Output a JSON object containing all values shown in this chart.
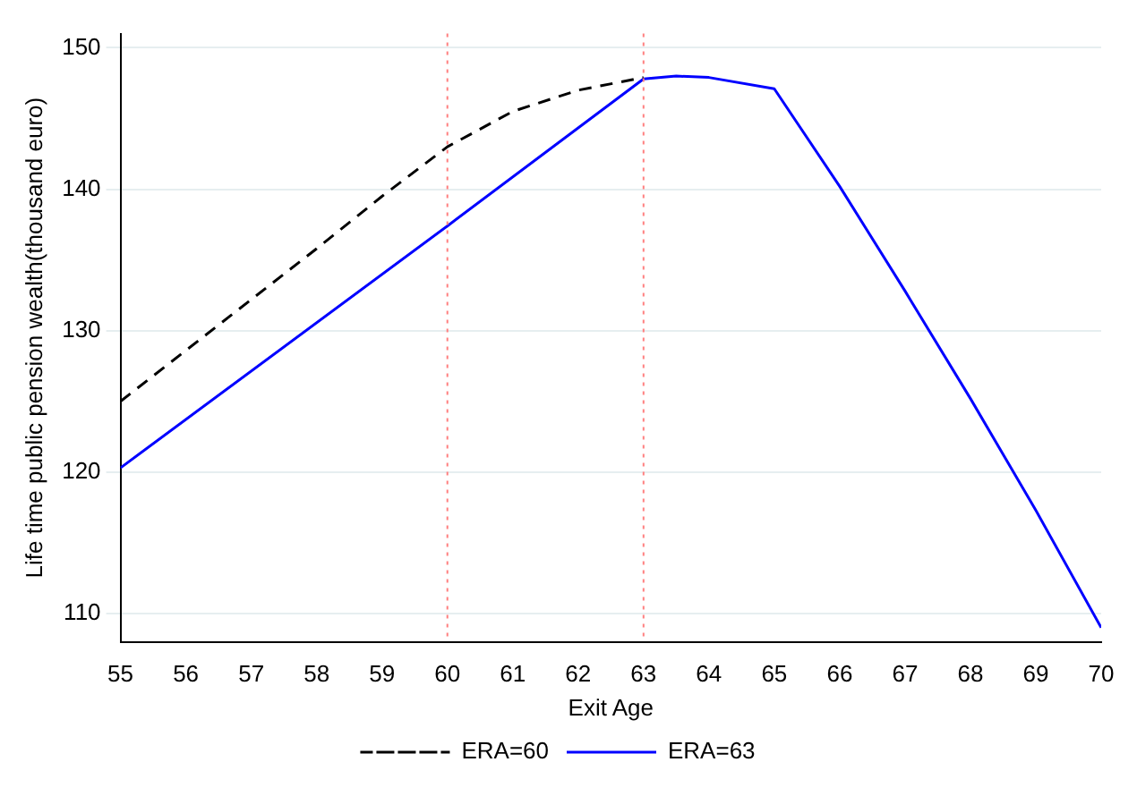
{
  "chart_data": {
    "type": "line",
    "xlabel": "Exit Age",
    "ylabel": "Life time public pension wealth(thousand euro)",
    "series": [
      {
        "name": "ERA=60",
        "color": "#000000",
        "line_style": "dashed",
        "x": [
          55,
          56,
          57,
          58,
          59,
          60,
          61,
          62,
          63
        ],
        "values": [
          125,
          128.6,
          132.2,
          135.8,
          139.5,
          143,
          145.5,
          147,
          147.9
        ]
      },
      {
        "name": "ERA=63",
        "color": "#0000ff",
        "line_style": "solid",
        "x": [
          55,
          60,
          63,
          63.5,
          64,
          65,
          66,
          67,
          68,
          69,
          70
        ],
        "values": [
          120.3,
          137.4,
          147.8,
          148,
          147.9,
          147.1,
          140.2,
          132.8,
          125.2,
          117.3,
          109
        ]
      }
    ],
    "xlim": [
      55,
      70
    ],
    "xticks": [
      55,
      56,
      57,
      58,
      59,
      60,
      61,
      62,
      63,
      64,
      65,
      66,
      67,
      68,
      69,
      70
    ],
    "ylim": [
      108,
      151
    ],
    "yticks": [
      110,
      120,
      130,
      140,
      150
    ],
    "ref_lines": [
      {
        "axis": "x",
        "value": 60,
        "color": "#ff8080",
        "line_style": "dotted"
      },
      {
        "axis": "x",
        "value": 63,
        "color": "#ff8080",
        "line_style": "dotted"
      }
    ],
    "grid": "y",
    "legend": "bottom",
    "marker": "none"
  }
}
